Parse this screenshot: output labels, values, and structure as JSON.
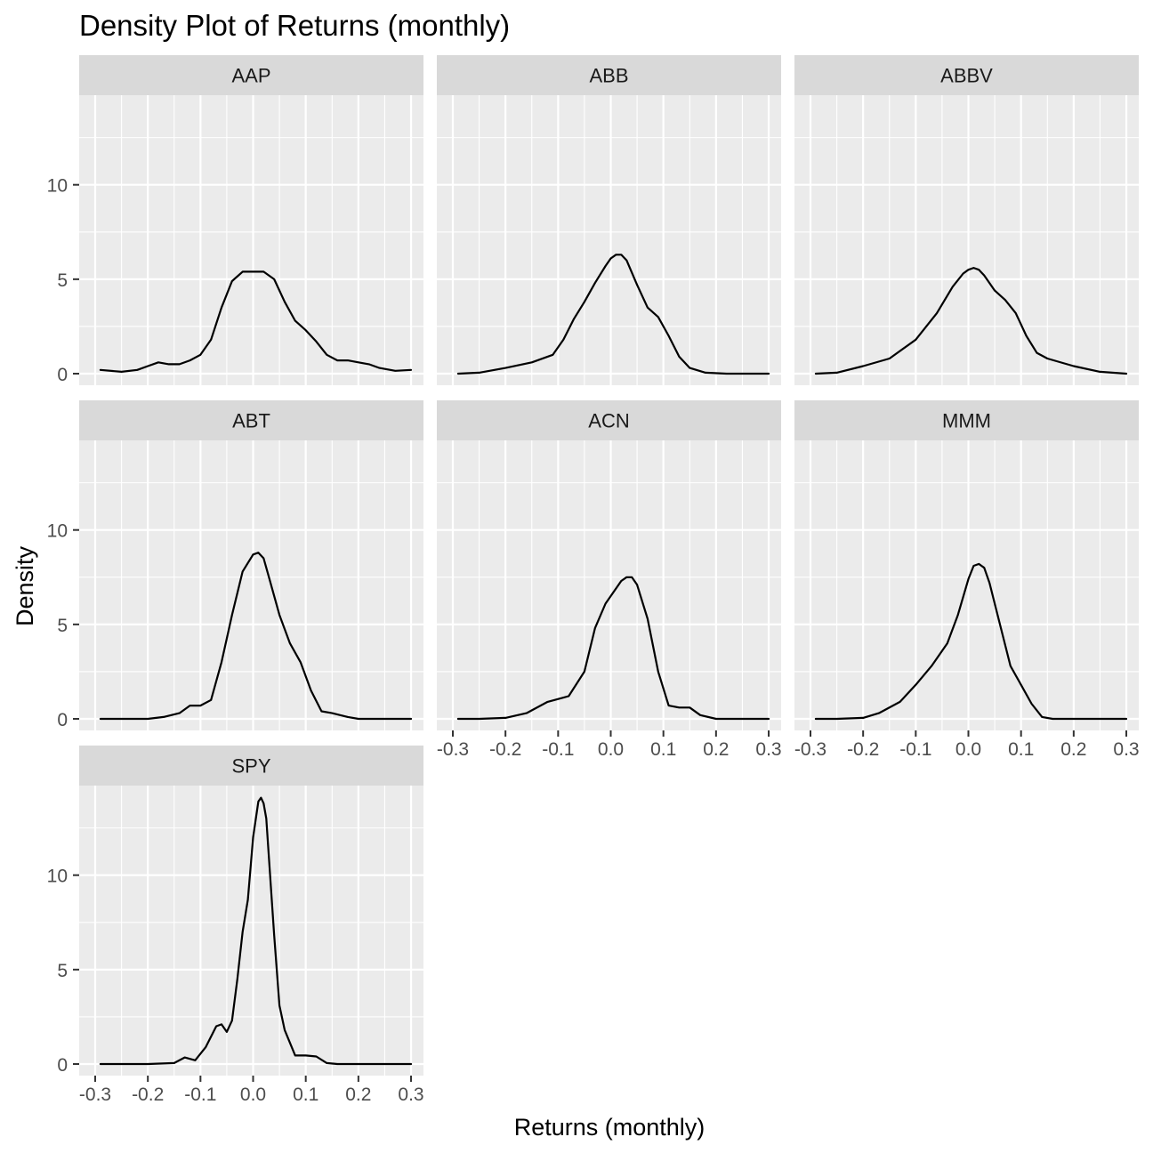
{
  "chart_data": {
    "type": "line",
    "title": "Density Plot of Returns (monthly)",
    "xlabel": "Returns (monthly)",
    "ylabel": "Density",
    "xlim": [
      -0.3,
      0.3
    ],
    "ylim": [
      0,
      14
    ],
    "x_ticks": [
      -0.3,
      -0.2,
      -0.1,
      0.0,
      0.1,
      0.2,
      0.3
    ],
    "x_tick_labels": [
      "-0.3",
      "-0.2",
      "-0.1",
      "0.0",
      "0.1",
      "0.2",
      "0.3"
    ],
    "y_ticks": [
      0,
      5,
      10
    ],
    "y_tick_labels": [
      "0",
      "5",
      "10"
    ],
    "grid": true,
    "facets": [
      {
        "name": "AAP",
        "x": [
          -0.29,
          -0.25,
          -0.22,
          -0.2,
          -0.18,
          -0.16,
          -0.14,
          -0.12,
          -0.1,
          -0.08,
          -0.06,
          -0.04,
          -0.02,
          0.0,
          0.02,
          0.04,
          0.06,
          0.08,
          0.1,
          0.12,
          0.14,
          0.16,
          0.18,
          0.2,
          0.22,
          0.24,
          0.27,
          0.3
        ],
        "y": [
          0.2,
          0.1,
          0.2,
          0.4,
          0.6,
          0.5,
          0.5,
          0.7,
          1.0,
          1.8,
          3.5,
          4.9,
          5.4,
          5.4,
          5.4,
          5.0,
          3.8,
          2.8,
          2.3,
          1.7,
          1.0,
          0.7,
          0.7,
          0.6,
          0.5,
          0.3,
          0.15,
          0.2
        ]
      },
      {
        "name": "ABB",
        "x": [
          -0.29,
          -0.25,
          -0.2,
          -0.15,
          -0.11,
          -0.09,
          -0.07,
          -0.05,
          -0.03,
          -0.01,
          0.0,
          0.01,
          0.02,
          0.03,
          0.05,
          0.07,
          0.09,
          0.11,
          0.13,
          0.15,
          0.18,
          0.22,
          0.26,
          0.3
        ],
        "y": [
          0.0,
          0.05,
          0.3,
          0.6,
          1.0,
          1.8,
          2.9,
          3.8,
          4.8,
          5.7,
          6.1,
          6.3,
          6.3,
          6.0,
          4.7,
          3.5,
          3.0,
          2.0,
          0.9,
          0.3,
          0.05,
          0.0,
          0.0,
          0.0
        ]
      },
      {
        "name": "ABBV",
        "x": [
          -0.29,
          -0.25,
          -0.2,
          -0.15,
          -0.1,
          -0.06,
          -0.03,
          -0.01,
          0.0,
          0.01,
          0.02,
          0.03,
          0.05,
          0.07,
          0.09,
          0.11,
          0.13,
          0.15,
          0.2,
          0.25,
          0.3
        ],
        "y": [
          0.0,
          0.05,
          0.4,
          0.8,
          1.8,
          3.2,
          4.6,
          5.3,
          5.5,
          5.6,
          5.5,
          5.2,
          4.4,
          3.9,
          3.2,
          2.0,
          1.1,
          0.8,
          0.4,
          0.1,
          0.0
        ]
      },
      {
        "name": "ABT",
        "x": [
          -0.29,
          -0.25,
          -0.2,
          -0.17,
          -0.14,
          -0.12,
          -0.1,
          -0.08,
          -0.06,
          -0.04,
          -0.02,
          0.0,
          0.01,
          0.02,
          0.03,
          0.05,
          0.07,
          0.09,
          0.11,
          0.13,
          0.15,
          0.18,
          0.2,
          0.25,
          0.3
        ],
        "y": [
          0.0,
          0.0,
          0.0,
          0.1,
          0.3,
          0.7,
          0.7,
          1.0,
          3.0,
          5.5,
          7.8,
          8.7,
          8.8,
          8.5,
          7.5,
          5.5,
          4.0,
          3.0,
          1.5,
          0.4,
          0.3,
          0.1,
          0.0,
          0.0,
          0.0
        ]
      },
      {
        "name": "ACN",
        "x": [
          -0.29,
          -0.25,
          -0.2,
          -0.16,
          -0.12,
          -0.08,
          -0.05,
          -0.03,
          -0.01,
          0.01,
          0.02,
          0.03,
          0.04,
          0.05,
          0.07,
          0.09,
          0.11,
          0.13,
          0.15,
          0.17,
          0.2,
          0.25,
          0.3
        ],
        "y": [
          0.0,
          0.0,
          0.05,
          0.3,
          0.9,
          1.2,
          2.5,
          4.8,
          6.1,
          6.9,
          7.3,
          7.5,
          7.5,
          7.1,
          5.3,
          2.5,
          0.7,
          0.6,
          0.6,
          0.2,
          0.0,
          0.0,
          0.0
        ]
      },
      {
        "name": "MMM",
        "x": [
          -0.29,
          -0.25,
          -0.2,
          -0.17,
          -0.13,
          -0.1,
          -0.07,
          -0.04,
          -0.02,
          0.0,
          0.01,
          0.02,
          0.03,
          0.04,
          0.06,
          0.08,
          0.1,
          0.12,
          0.14,
          0.16,
          0.2,
          0.25,
          0.3
        ],
        "y": [
          0.0,
          0.0,
          0.05,
          0.3,
          0.9,
          1.8,
          2.8,
          4.0,
          5.5,
          7.4,
          8.1,
          8.2,
          8.0,
          7.2,
          5.0,
          2.8,
          1.8,
          0.8,
          0.1,
          0.0,
          0.0,
          0.0,
          0.0
        ]
      },
      {
        "name": "SPY",
        "x": [
          -0.29,
          -0.25,
          -0.2,
          -0.15,
          -0.13,
          -0.11,
          -0.09,
          -0.07,
          -0.06,
          -0.05,
          -0.04,
          -0.03,
          -0.02,
          -0.01,
          0.0,
          0.01,
          0.015,
          0.02,
          0.025,
          0.03,
          0.04,
          0.05,
          0.06,
          0.08,
          0.1,
          0.12,
          0.14,
          0.16,
          0.2,
          0.25,
          0.3
        ],
        "y": [
          0.0,
          0.0,
          0.0,
          0.05,
          0.35,
          0.2,
          0.9,
          2.0,
          2.1,
          1.7,
          2.3,
          4.5,
          7.0,
          8.7,
          12.0,
          13.9,
          14.1,
          13.8,
          13.0,
          10.9,
          6.8,
          3.1,
          1.8,
          0.45,
          0.45,
          0.4,
          0.05,
          0.0,
          0.0,
          0.0,
          0.0
        ]
      }
    ]
  }
}
